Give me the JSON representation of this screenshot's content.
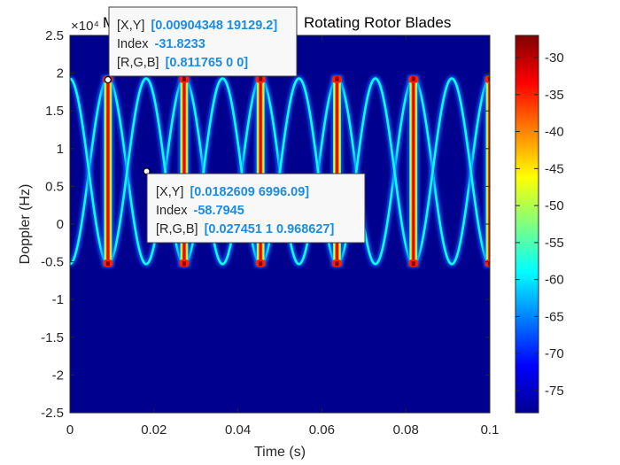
{
  "chart_data": {
    "type": "heatmap",
    "title": "M... Rotating Rotor Blades",
    "title_left": "M",
    "title_right": "Rotating Rotor Blades",
    "xlabel": "Time (s)",
    "ylabel": "Doppler (Hz)",
    "y_exponent": "×10⁴",
    "xlim": [
      0,
      0.1
    ],
    "ylim": [
      -25000,
      25000
    ],
    "x_ticks": [
      0,
      0.02,
      0.04,
      0.06,
      0.08,
      0.1
    ],
    "x_tick_labels": [
      "0",
      "0.02",
      "0.04",
      "0.06",
      "0.08",
      "0.1"
    ],
    "y_ticks": [
      -25000,
      -20000,
      -15000,
      -10000,
      -5000,
      0,
      5000,
      10000,
      15000,
      20000,
      25000
    ],
    "y_tick_labels": [
      "-2.5",
      "-2",
      "-1.5",
      "-1",
      "-0.5",
      "0",
      "0.5",
      "1",
      "1.5",
      "2",
      "2.5"
    ],
    "colormap": "jet",
    "colorbar": {
      "clim": [
        -78,
        -27
      ],
      "ticks": [
        -30,
        -35,
        -40,
        -45,
        -50,
        -55,
        -60,
        -65,
        -70,
        -75
      ],
      "tick_labels": [
        "-30",
        "-35",
        "-40",
        "-45",
        "-50",
        "-55",
        "-60",
        "-65",
        "-70",
        "-75"
      ]
    },
    "signal": {
      "rotation_period_s": 0.0182,
      "doppler_center_hz": 7000,
      "doppler_amplitude_hz": 12300,
      "first_peak_time_s": 0.00905,
      "background_db": -77,
      "curve_db": -58.8,
      "flash_db": -27
    },
    "flash_times": [
      0.00905,
      0.0272,
      0.0454,
      0.0636,
      0.0818,
      0.1
    ],
    "datatips": [
      {
        "x_label": "[X,Y]",
        "x_value": "[0.00904348 19129.2]",
        "index_label": "Index",
        "index_value": "-31.8233",
        "rgb_label": "[R,G,B]",
        "rgb_value": "[0.811765 0 0]",
        "x": 0.00904348,
        "y": 19129.2
      },
      {
        "x_label": "[X,Y]",
        "x_value": "[0.0182609 6996.09]",
        "index_label": "Index",
        "index_value": "-58.7945",
        "rgb_label": "[R,G,B]",
        "rgb_value": "[0.027451 1 0.968627]",
        "x": 0.0182609,
        "y": 6996.09
      }
    ],
    "colors": {
      "background": "#00008f",
      "curve": "#07fff7",
      "flash": "#cf0000"
    }
  }
}
